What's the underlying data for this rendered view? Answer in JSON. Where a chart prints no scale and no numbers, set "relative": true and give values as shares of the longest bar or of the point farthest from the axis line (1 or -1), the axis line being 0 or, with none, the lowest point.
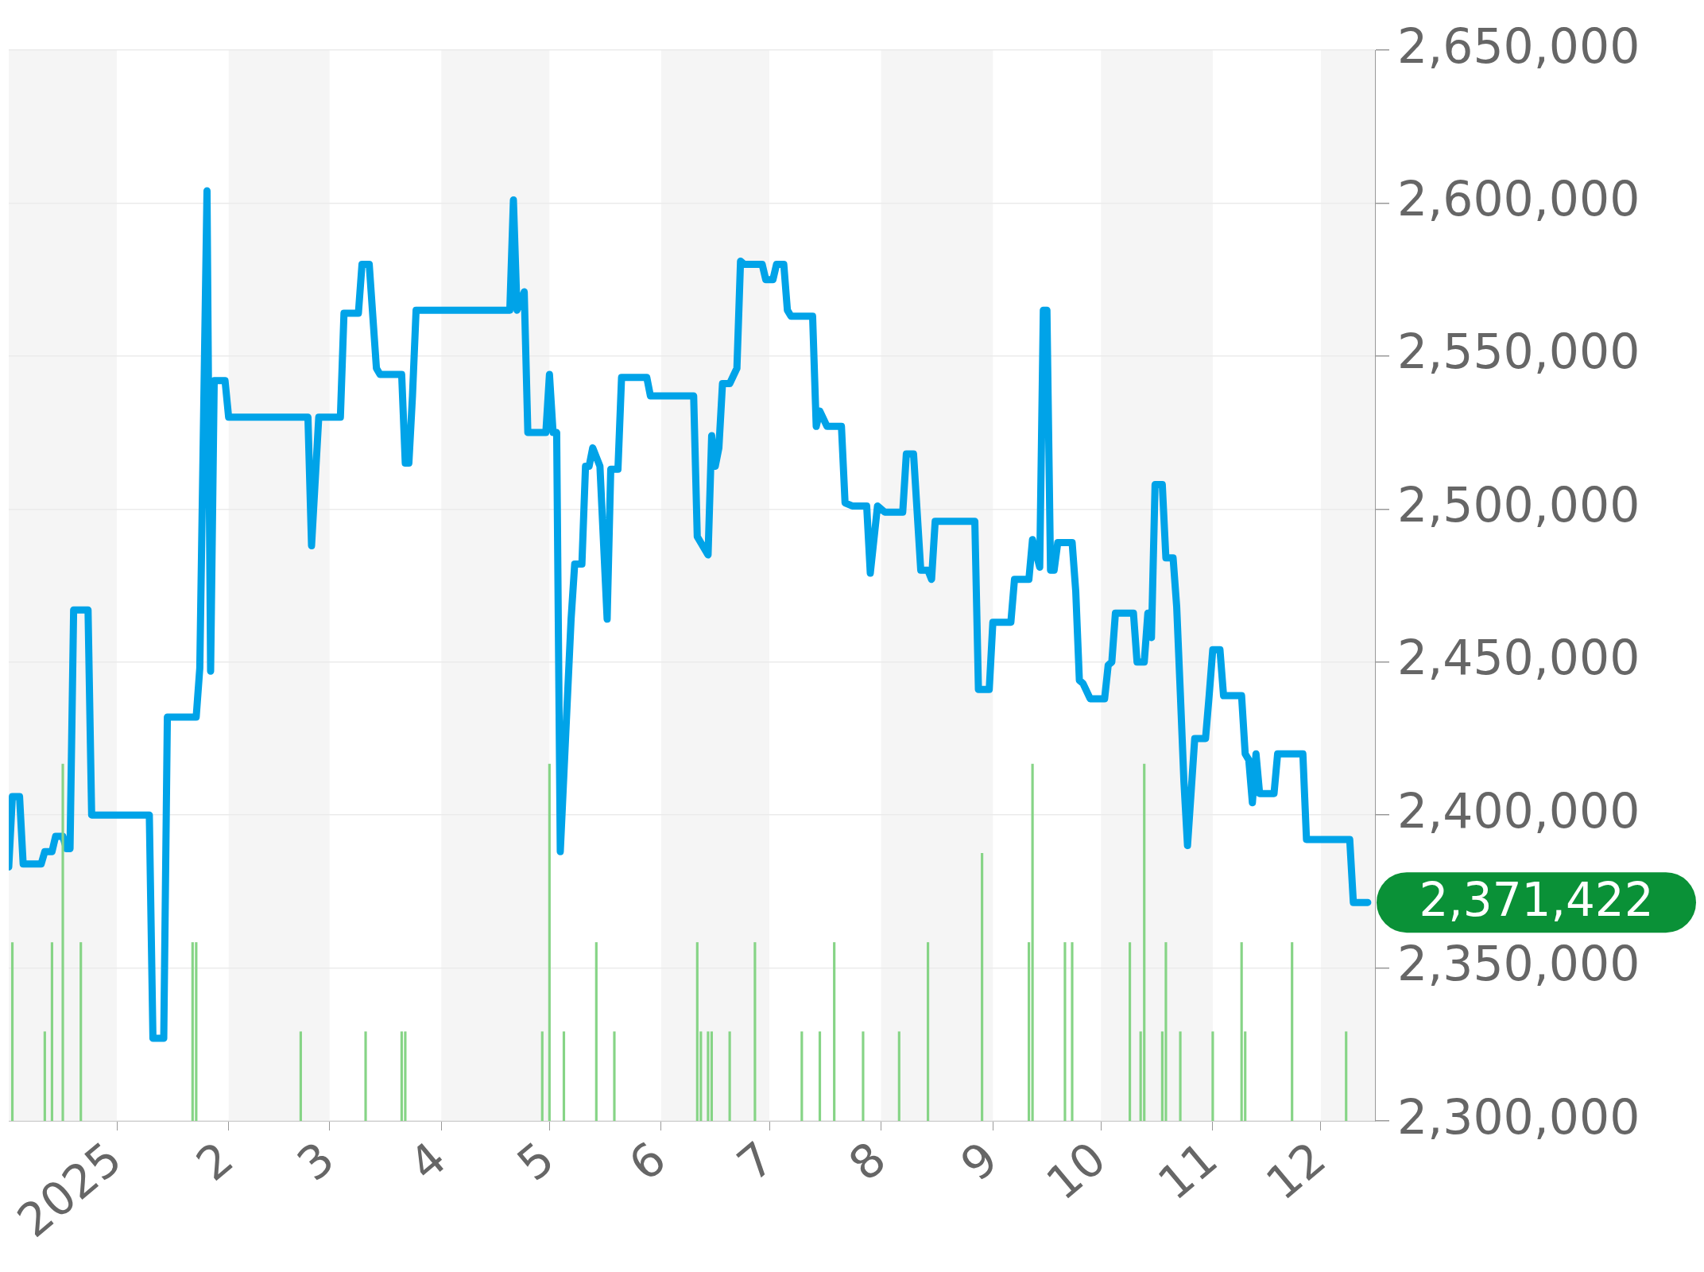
{
  "chart_data": [
    {
      "type": "line",
      "xlim": [
        "2024-12-02",
        "2025-12-16"
      ],
      "xticks": [
        {
          "value": "2025-01-01",
          "label": "2025"
        },
        {
          "value": "2025-02-01",
          "label": "2"
        },
        {
          "value": "2025-03-01",
          "label": "3"
        },
        {
          "value": "2025-04-01",
          "label": "4"
        },
        {
          "value": "2025-05-01",
          "label": "5"
        },
        {
          "value": "2025-06-01",
          "label": "6"
        },
        {
          "value": "2025-07-01",
          "label": "7"
        },
        {
          "value": "2025-08-01",
          "label": "8"
        },
        {
          "value": "2025-09-01",
          "label": "9"
        },
        {
          "value": "2025-10-01",
          "label": "10"
        },
        {
          "value": "2025-11-01",
          "label": "11"
        },
        {
          "value": "2025-12-01",
          "label": "12"
        }
      ],
      "ylim": [
        2300000,
        2650000
      ],
      "yticks": [
        {
          "value": 2300000,
          "label": "2,300,000"
        },
        {
          "value": 2350000,
          "label": "2,350,000"
        },
        {
          "value": 2400000,
          "label": "2,400,000"
        },
        {
          "value": 2450000,
          "label": "2,450,000"
        },
        {
          "value": 2500000,
          "label": "2,500,000"
        },
        {
          "value": 2550000,
          "label": "2,550,000"
        },
        {
          "value": 2600000,
          "label": "2,600,000"
        },
        {
          "value": 2650000,
          "label": "2,650,000"
        }
      ],
      "grid": "y",
      "bands": [
        {
          "axis": "x",
          "from": "2024-12-02",
          "to": "2025-01-01",
          "color": "#f5f5f5"
        },
        {
          "axis": "x",
          "from": "2025-02-01",
          "to": "2025-03-01",
          "color": "#f5f5f5"
        },
        {
          "axis": "x",
          "from": "2025-04-01",
          "to": "2025-05-01",
          "color": "#f5f5f5"
        },
        {
          "axis": "x",
          "from": "2025-06-01",
          "to": "2025-07-01",
          "color": "#f5f5f5"
        },
        {
          "axis": "x",
          "from": "2025-08-01",
          "to": "2025-09-01",
          "color": "#f5f5f5"
        },
        {
          "axis": "x",
          "from": "2025-10-01",
          "to": "2025-11-01",
          "color": "#f5f5f5"
        },
        {
          "axis": "x",
          "from": "2025-12-01",
          "to": "2025-12-16",
          "color": "#f5f5f5"
        }
      ],
      "annotations": [
        "2,371,422"
      ],
      "series": [
        {
          "color": "#00a3e8",
          "x": [
            "2024-12-02",
            "2024-12-03",
            "2024-12-05",
            "2024-12-06",
            "2024-12-11",
            "2024-12-12",
            "2024-12-14",
            "2024-12-15",
            "2024-12-17",
            "2024-12-18",
            "2024-12-19",
            "2024-12-20",
            "2024-12-24",
            "2024-12-25",
            "2025-01-10",
            "2025-01-11",
            "2025-01-14",
            "2025-01-15",
            "2025-01-23",
            "2025-01-24",
            "2025-01-26",
            "2025-01-27",
            "2025-01-28",
            "2025-01-31",
            "2025-02-01",
            "2025-02-23",
            "2025-02-24",
            "2025-02-26",
            "2025-03-04",
            "2025-03-05",
            "2025-03-09",
            "2025-03-10",
            "2025-03-12",
            "2025-03-14",
            "2025-03-15",
            "2025-03-21",
            "2025-03-22",
            "2025-03-23",
            "2025-03-24",
            "2025-03-25",
            "2025-04-20",
            "2025-04-21",
            "2025-04-22",
            "2025-04-24",
            "2025-04-25",
            "2025-04-30",
            "2025-05-01",
            "2025-05-02",
            "2025-05-03",
            "2025-05-04",
            "2025-05-07",
            "2025-05-08",
            "2025-05-10",
            "2025-05-11",
            "2025-05-12",
            "2025-05-13",
            "2025-05-15",
            "2025-05-17",
            "2025-05-18",
            "2025-05-20",
            "2025-05-21",
            "2025-05-28",
            "2025-05-29",
            "2025-06-10",
            "2025-06-11",
            "2025-06-14",
            "2025-06-15",
            "2025-06-16",
            "2025-06-17",
            "2025-06-18",
            "2025-06-20",
            "2025-06-22",
            "2025-06-23",
            "2025-06-24",
            "2025-06-29",
            "2025-06-30",
            "2025-07-02",
            "2025-07-03",
            "2025-07-05",
            "2025-07-06",
            "2025-07-07",
            "2025-07-13",
            "2025-07-14",
            "2025-07-15",
            "2025-07-17",
            "2025-07-21",
            "2025-07-22",
            "2025-07-24",
            "2025-07-28",
            "2025-07-29",
            "2025-07-31",
            "2025-08-02",
            "2025-08-07",
            "2025-08-08",
            "2025-08-10",
            "2025-08-12",
            "2025-08-14",
            "2025-08-15",
            "2025-08-16",
            "2025-08-27",
            "2025-08-28",
            "2025-08-31",
            "2025-09-01",
            "2025-09-06",
            "2025-09-07",
            "2025-09-11",
            "2025-09-12",
            "2025-09-14",
            "2025-09-15",
            "2025-09-16",
            "2025-09-17",
            "2025-09-18",
            "2025-09-19",
            "2025-09-23",
            "2025-09-24",
            "2025-09-25",
            "2025-09-26",
            "2025-09-28",
            "2025-10-02",
            "2025-10-03",
            "2025-10-04",
            "2025-10-05",
            "2025-10-10",
            "2025-10-11",
            "2025-10-13",
            "2025-10-14",
            "2025-10-15",
            "2025-10-16",
            "2025-10-18",
            "2025-10-19",
            "2025-10-21",
            "2025-10-22",
            "2025-10-23",
            "2025-10-24",
            "2025-10-25",
            "2025-10-27",
            "2025-10-30",
            "2025-10-31",
            "2025-11-01",
            "2025-11-03",
            "2025-11-04",
            "2025-11-09",
            "2025-11-10",
            "2025-11-11",
            "2025-11-12",
            "2025-11-13",
            "2025-11-14",
            "2025-11-18",
            "2025-11-19",
            "2025-11-26",
            "2025-11-27",
            "2025-12-09",
            "2025-12-10",
            "2025-12-14"
          ],
          "values": [
            2383000,
            2406000,
            2406000,
            2384000,
            2384000,
            2388000,
            2388000,
            2393000,
            2393000,
            2389000,
            2389000,
            2467000,
            2467000,
            2400000,
            2400000,
            2327000,
            2327000,
            2432000,
            2432000,
            2448000,
            2604000,
            2447000,
            2542000,
            2542000,
            2530000,
            2530000,
            2488000,
            2530000,
            2530000,
            2564000,
            2564000,
            2580000,
            2580000,
            2546000,
            2544000,
            2544000,
            2515000,
            2515000,
            2537000,
            2565000,
            2565000,
            2601000,
            2565000,
            2571000,
            2525000,
            2525000,
            2544000,
            2525000,
            2525000,
            2388000,
            2464000,
            2482000,
            2482000,
            2514000,
            2514000,
            2520000,
            2514000,
            2464000,
            2513000,
            2513000,
            2543000,
            2543000,
            2537000,
            2537000,
            2491000,
            2485000,
            2524000,
            2514000,
            2520000,
            2541000,
            2541000,
            2546000,
            2581000,
            2580000,
            2580000,
            2575000,
            2575000,
            2580000,
            2580000,
            2565000,
            2563000,
            2563000,
            2527000,
            2532000,
            2527000,
            2527000,
            2502000,
            2501000,
            2501000,
            2479000,
            2501000,
            2499000,
            2499000,
            2518000,
            2518000,
            2480000,
            2480000,
            2477000,
            2496000,
            2496000,
            2441000,
            2441000,
            2463000,
            2463000,
            2477000,
            2477000,
            2490000,
            2481000,
            2565000,
            2565000,
            2480000,
            2480000,
            2489000,
            2489000,
            2473000,
            2444000,
            2443000,
            2438000,
            2438000,
            2449000,
            2450000,
            2466000,
            2466000,
            2450000,
            2450000,
            2466000,
            2458000,
            2508000,
            2508000,
            2484000,
            2484000,
            2468000,
            2440000,
            2411000,
            2390000,
            2425000,
            2425000,
            2439000,
            2454000,
            2454000,
            2439000,
            2439000,
            2420000,
            2418000,
            2404000,
            2420000,
            2407000,
            2407000,
            2420000,
            2420000,
            2392000,
            2392000,
            2371422,
            2371422
          ]
        }
      ]
    },
    {
      "type": "bar",
      "relative": true,
      "xlim": [
        "2024-12-02",
        "2025-12-16"
      ],
      "color": "#86d486",
      "x": [
        "2024-12-03",
        "2024-12-12",
        "2024-12-14",
        "2024-12-17",
        "2024-12-22",
        "2025-01-22",
        "2025-01-23",
        "2025-02-21",
        "2025-03-11",
        "2025-03-21",
        "2025-03-22",
        "2025-04-29",
        "2025-05-01",
        "2025-05-05",
        "2025-05-14",
        "2025-05-19",
        "2025-06-11",
        "2025-06-12",
        "2025-06-14",
        "2025-06-15",
        "2025-06-20",
        "2025-06-27",
        "2025-07-10",
        "2025-07-15",
        "2025-07-19",
        "2025-07-27",
        "2025-08-06",
        "2025-08-14",
        "2025-08-29",
        "2025-09-11",
        "2025-09-12",
        "2025-09-21",
        "2025-09-23",
        "2025-10-09",
        "2025-10-12",
        "2025-10-13",
        "2025-10-18",
        "2025-10-19",
        "2025-10-23",
        "2025-11-01",
        "2025-11-09",
        "2025-11-10",
        "2025-11-23",
        "2025-12-08"
      ],
      "values": [
        0.5,
        0.25,
        0.5,
        1,
        0.5,
        0.5,
        0.5,
        0.25,
        0.25,
        0.25,
        0.25,
        0.25,
        1,
        0.25,
        0.5,
        0.25,
        0.5,
        0.25,
        0.25,
        0.25,
        0.25,
        0.5,
        0.25,
        0.25,
        0.5,
        0.25,
        0.25,
        0.5,
        0.75,
        0.5,
        1,
        0.5,
        0.5,
        0.5,
        0.25,
        1,
        0.25,
        0.5,
        0.25,
        0.25,
        0.5,
        0.25,
        0.5,
        0.25
      ]
    }
  ]
}
